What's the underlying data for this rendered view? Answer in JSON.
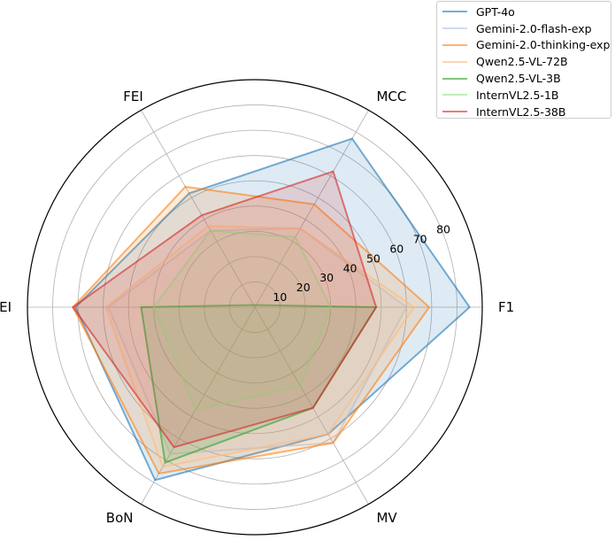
{
  "chart_data": {
    "type": "radar",
    "axes": [
      "F1",
      "MCC",
      "FEI",
      "AEI",
      "BoN",
      "MV"
    ],
    "rmax": 90,
    "radial_ticks": [
      10,
      20,
      30,
      40,
      50,
      60,
      70,
      80
    ],
    "tick_labels": [
      "10",
      "20",
      "30",
      "40",
      "50",
      "60",
      "70",
      "80"
    ],
    "legend_position": "top-right",
    "series": [
      {
        "name": "GPT-4o",
        "color": "#1f77b4",
        "line_alpha": 0.6,
        "fill_alpha": 0.15,
        "values": [
          85,
          77,
          52,
          71,
          79,
          58
        ]
      },
      {
        "name": "Gemini-2.0-flash-exp",
        "color": "#aec7e8",
        "line_alpha": 0.6,
        "fill_alpha": 0.15,
        "values": [
          60,
          36,
          35,
          58,
          67,
          62
        ]
      },
      {
        "name": "Gemini-2.0-thinking-exp",
        "color": "#ff7f0e",
        "line_alpha": 0.6,
        "fill_alpha": 0.15,
        "values": [
          69,
          47,
          55,
          72,
          76,
          62
        ]
      },
      {
        "name": "Qwen2.5-VL-72B",
        "color": "#ffbb78",
        "line_alpha": 0.6,
        "fill_alpha": 0.15,
        "values": [
          63,
          36,
          37,
          59,
          73,
          58
        ]
      },
      {
        "name": "Qwen2.5-VL-3B",
        "color": "#2ca02c",
        "line_alpha": 0.6,
        "fill_alpha": 0.15,
        "values": [
          48,
          1,
          1,
          45,
          71,
          46
        ]
      },
      {
        "name": "InternVL2.5-1B",
        "color": "#98df8a",
        "line_alpha": 0.6,
        "fill_alpha": 0.15,
        "values": [
          30,
          32,
          35,
          40,
          47,
          36
        ]
      },
      {
        "name": "InternVL2.5-38B",
        "color": "#d62728",
        "line_alpha": 0.6,
        "fill_alpha": 0.15,
        "values": [
          48,
          62,
          42,
          72,
          64,
          46
        ]
      }
    ]
  }
}
